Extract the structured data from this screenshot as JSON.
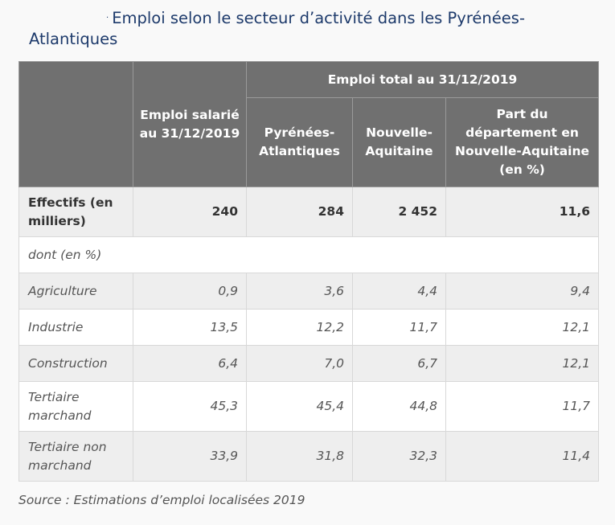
{
  "title": {
    "line1": "Emploi selon le secteur d’activité dans les Pyrénées-",
    "line2": "Atlantiques"
  },
  "header": {
    "salarie": "Emploi salarié au 31/12/2019",
    "total_group": "Emploi total au 31/12/2019",
    "pyr": "Pyrénées-Atlantiques",
    "na": "Nouvelle-Aquitaine",
    "part": "Part du département en Nouvelle-Aquitaine (en %)"
  },
  "effectifs": {
    "label": "Effectifs (en milliers)",
    "values": [
      "240",
      "284",
      "2 452",
      "11,6"
    ]
  },
  "dont_label": "dont (en %)",
  "rows": [
    {
      "label": "Agriculture",
      "values": [
        "0,9",
        "3,6",
        "4,4",
        "9,4"
      ]
    },
    {
      "label": "Industrie",
      "values": [
        "13,5",
        "12,2",
        "11,7",
        "12,1"
      ]
    },
    {
      "label": "Construction",
      "values": [
        "6,4",
        "7,0",
        "6,7",
        "12,1"
      ]
    },
    {
      "label": "Tertiaire marchand",
      "values": [
        "45,3",
        "45,4",
        "44,8",
        "11,7"
      ]
    },
    {
      "label": "Tertiaire non marchand",
      "values": [
        "33,9",
        "31,8",
        "32,3",
        "11,4"
      ]
    }
  ],
  "source": "Source : Estimations d’emploi localisées 2019"
}
